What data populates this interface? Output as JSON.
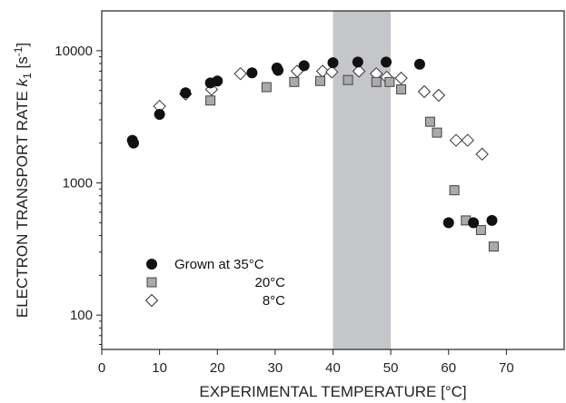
{
  "chart_data": {
    "type": "scatter",
    "title": "",
    "xlabel": "EXPERIMENTAL TEMPERATURE [°C]",
    "ylabel_parts": [
      "ELECTRON TRANSPORT RATE ",
      "k",
      "1",
      " [s",
      "-1",
      "]"
    ],
    "x_range": [
      0,
      80
    ],
    "y_range": [
      55,
      20000
    ],
    "y_scale": "log",
    "x_ticks": [
      0,
      10,
      20,
      30,
      40,
      50,
      60,
      70
    ],
    "y_ticks": [
      100,
      1000,
      10000
    ],
    "grid": false,
    "legend_position": "bottom-left",
    "highlight_band": {
      "x_start": 40,
      "x_end": 50,
      "color": "#c5c6c9"
    },
    "series": [
      {
        "name": "Grown at 35°C",
        "marker": "circle",
        "fill": "#111111",
        "stroke": "#111111",
        "points": [
          [
            5.3,
            2100
          ],
          [
            5.5,
            2000
          ],
          [
            10,
            3300
          ],
          [
            14.5,
            4800
          ],
          [
            18.8,
            5700
          ],
          [
            20,
            5900
          ],
          [
            26,
            6800
          ],
          [
            30.3,
            7400
          ],
          [
            30.5,
            7100
          ],
          [
            35,
            7700
          ],
          [
            40,
            8100
          ],
          [
            44.3,
            8200
          ],
          [
            49.2,
            8200
          ],
          [
            55,
            7900
          ],
          [
            60,
            500
          ],
          [
            64.3,
            500
          ],
          [
            67.5,
            520
          ]
        ]
      },
      {
        "name": "20°C",
        "marker": "square",
        "fill": "#aaaaaa",
        "stroke": "#444444",
        "points": [
          [
            18.8,
            4200
          ],
          [
            28.5,
            5300
          ],
          [
            33.3,
            5800
          ],
          [
            37.8,
            5900
          ],
          [
            42.6,
            6000
          ],
          [
            47.5,
            5800
          ],
          [
            49.8,
            5800
          ],
          [
            51.8,
            5100
          ],
          [
            56.8,
            2900
          ],
          [
            58,
            2400
          ],
          [
            61,
            880
          ],
          [
            63,
            520
          ],
          [
            65.6,
            440
          ],
          [
            67.8,
            330
          ]
        ]
      },
      {
        "name": "8°C",
        "marker": "diamond",
        "fill": "#ffffff",
        "stroke": "#333333",
        "points": [
          [
            10,
            3800
          ],
          [
            14.5,
            4700
          ],
          [
            19,
            5100
          ],
          [
            24,
            6700
          ],
          [
            33.8,
            7000
          ],
          [
            38.2,
            7000
          ],
          [
            39.8,
            6900
          ],
          [
            44.5,
            7000
          ],
          [
            47.5,
            6700
          ],
          [
            49.3,
            6300
          ],
          [
            51.8,
            6200
          ],
          [
            55.8,
            4900
          ],
          [
            58.3,
            4600
          ],
          [
            61.3,
            2100
          ],
          [
            63.3,
            2100
          ],
          [
            65.8,
            1650
          ]
        ]
      }
    ]
  }
}
